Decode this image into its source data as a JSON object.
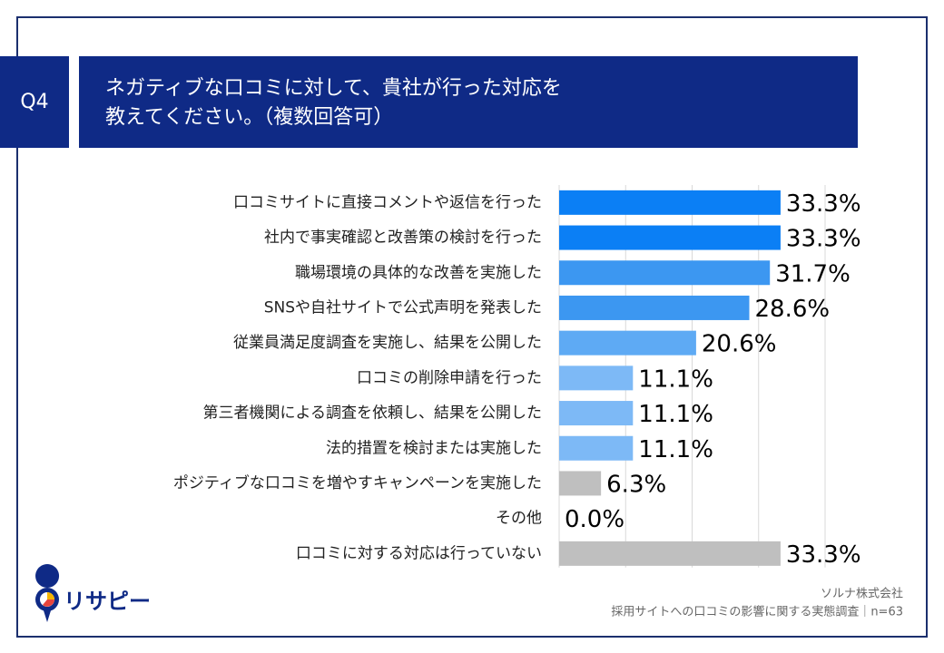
{
  "header": {
    "label": "Q4",
    "title": [
      "ネガティブな口コミに対して、貴社が行った対応を",
      "教えてください。（複数回答可）"
    ]
  },
  "chart_data": {
    "type": "bar",
    "orientation": "horizontal",
    "categories": [
      "口コミサイトに直接コメントや返信を行った",
      "社内で事実確認と改善策の検討を行った",
      "職場環境の具体的な改善を実施した",
      "SNSや自社サイトで公式声明を発表した",
      "従業員満足度調査を実施し、結果を公開した",
      "口コミの削除申請を行った",
      "第三者機関による調査を依頼し、結果を公開した",
      "法的措置を検討または実施した",
      "ポジティブな口コミを増やすキャンペーンを実施した",
      "その他",
      "口コミに対する対応は行っていない"
    ],
    "values": [
      33.3,
      33.3,
      31.7,
      28.6,
      20.6,
      11.1,
      11.1,
      11.1,
      6.3,
      0.0,
      33.3
    ],
    "value_labels": [
      "33.3%",
      "33.3%",
      "31.7%",
      "28.6%",
      "20.6%",
      "11.1%",
      "11.1%",
      "11.1%",
      "6.3%",
      "0.0%",
      "33.3%"
    ],
    "colors": [
      "#0b7ff5",
      "#0b7ff5",
      "#3c97f1",
      "#3c97f1",
      "#5eaaf4",
      "#7db9f6",
      "#7db9f6",
      "#7db9f6",
      "#bfbfbf",
      "#bfbfbf",
      "#bfbfbf"
    ],
    "xlim": [
      0,
      40
    ],
    "xticks": [
      0,
      10,
      20,
      30,
      40
    ],
    "grid": true
  },
  "footer": {
    "logo": "リサピー",
    "source": [
      "ソルナ株式会社",
      "採用サイトへの口コミの影響に関する実態調査｜n=63"
    ]
  }
}
